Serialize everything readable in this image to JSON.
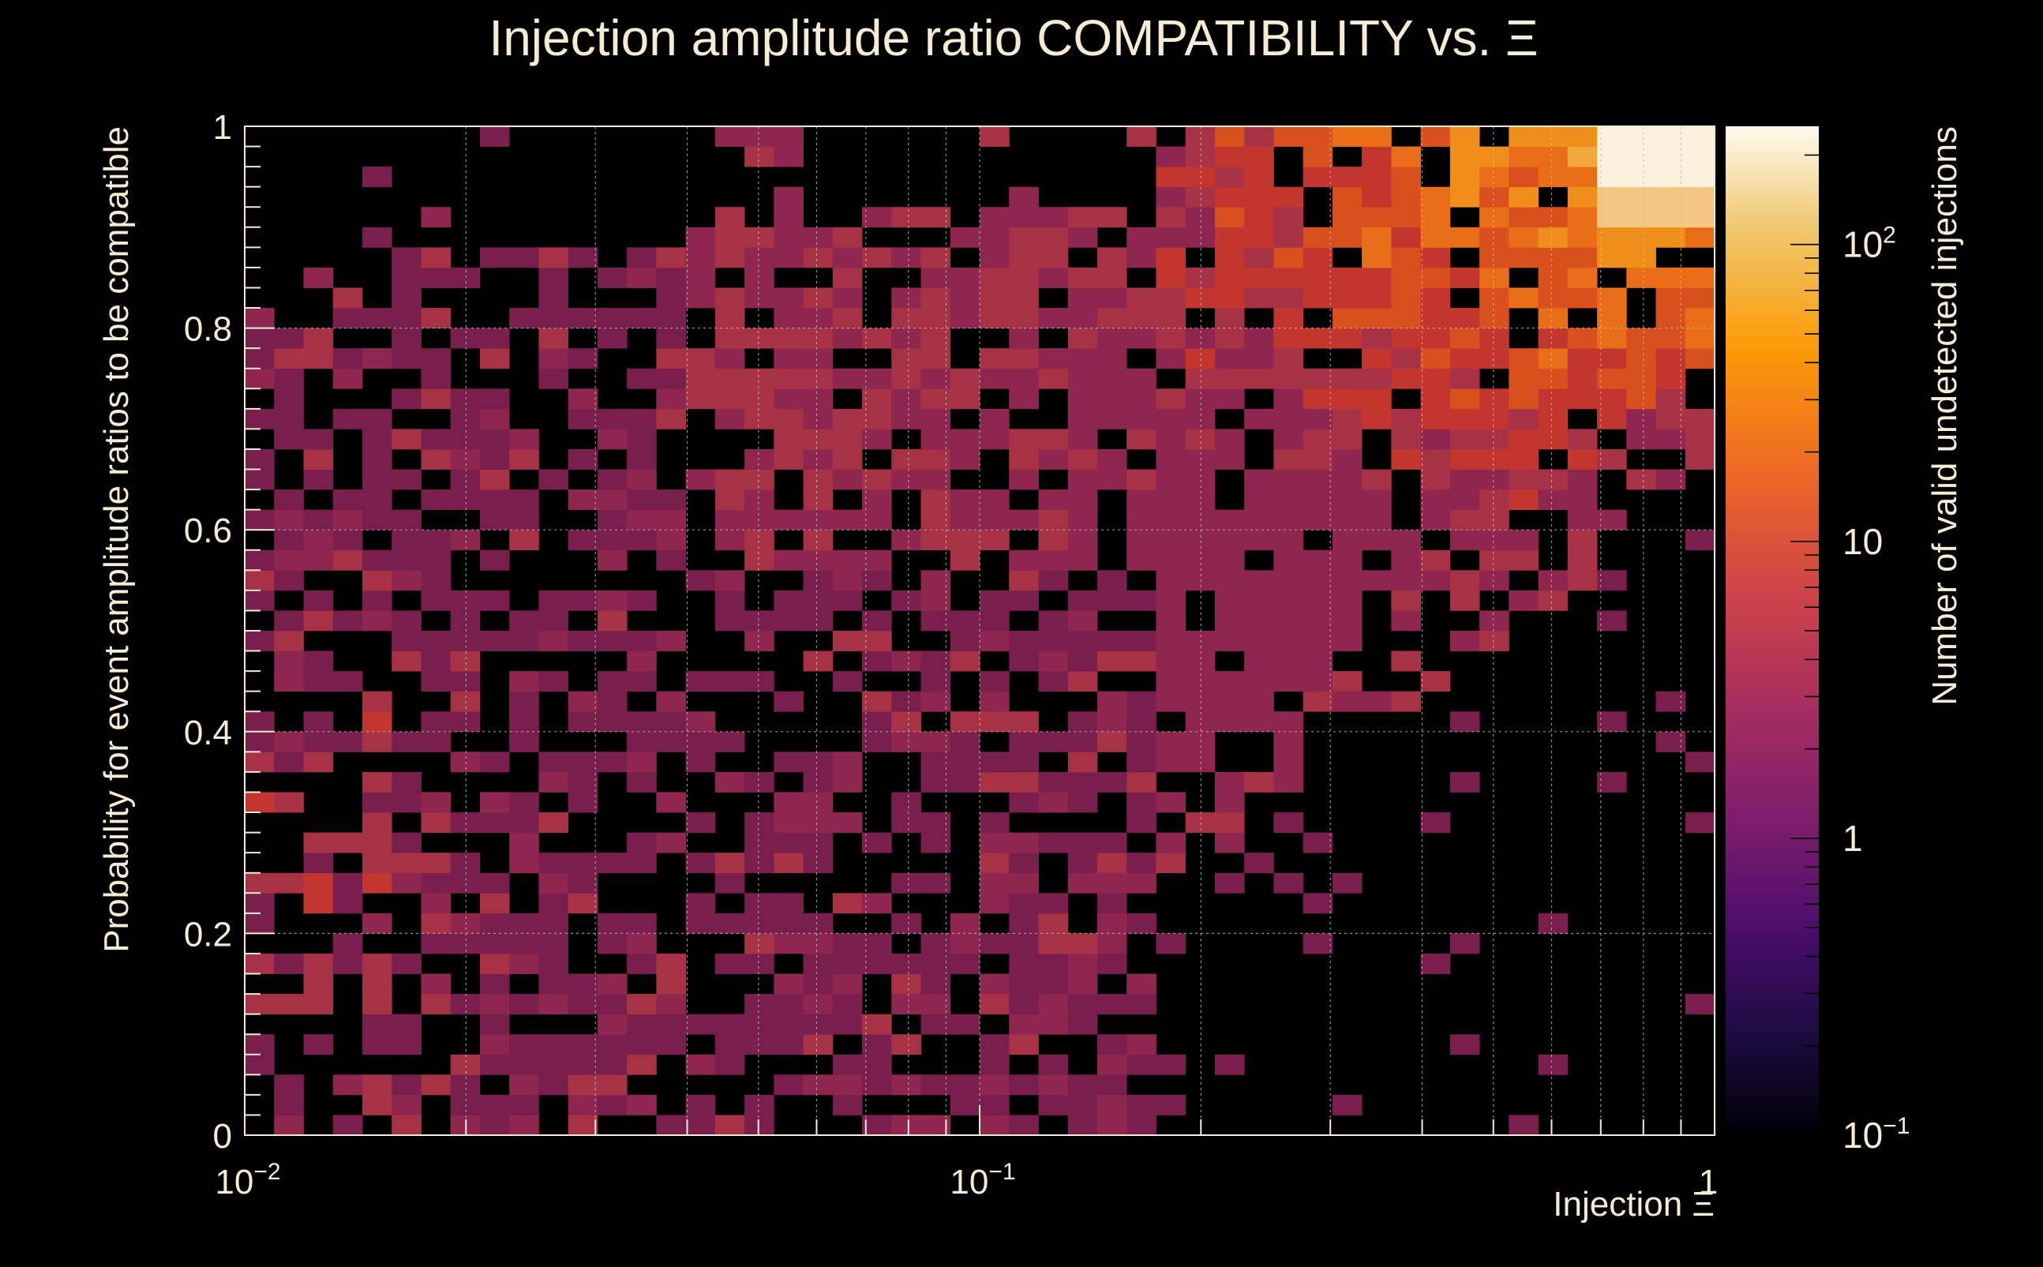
{
  "chart_data": {
    "type": "heatmap",
    "title": "Injection amplitude ratio COMPATIBILITY vs.  Ξ",
    "xlabel": "Injection Ξ",
    "ylabel": "Probability for event amplitude ratios to be compatible",
    "zlabel": "Number of valid undetected injections",
    "x_scale": "log",
    "xlim": [
      0.01,
      1
    ],
    "ylim": [
      0,
      1
    ],
    "z_scale": "log",
    "zlim": [
      0.1,
      250
    ],
    "x_ticks": [
      {
        "value": 0.01,
        "base": "10",
        "exp": "−2"
      },
      {
        "value": 0.1,
        "base": "10",
        "exp": "−1"
      },
      {
        "value": 1,
        "base": "1",
        "exp": ""
      }
    ],
    "y_ticks": [
      {
        "value": 0,
        "label": "0"
      },
      {
        "value": 0.2,
        "label": "0.2"
      },
      {
        "value": 0.4,
        "label": "0.4"
      },
      {
        "value": 0.6,
        "label": "0.6"
      },
      {
        "value": 0.8,
        "label": "0.8"
      },
      {
        "value": 1,
        "label": "1"
      }
    ],
    "z_ticks": [
      {
        "value": 0.1,
        "base": "10",
        "exp": "−1"
      },
      {
        "value": 1,
        "base": "1",
        "exp": ""
      },
      {
        "value": 10,
        "base": "10",
        "exp": ""
      },
      {
        "value": 100,
        "base": "10",
        "exp": "2"
      }
    ],
    "grid": true,
    "bins": {
      "nx": 50,
      "ny": 50
    },
    "colormap": [
      "#000000",
      "#1b0c41",
      "#4a0c6b",
      "#781c6d",
      "#a52c60",
      "#cf4446",
      "#ed6925",
      "#fb9b06",
      "#f7d13d",
      "#fcffa4",
      "#ffffff"
    ],
    "hotspot": {
      "x_center": 0.95,
      "y_center": 0.95,
      "peak_count": 250
    },
    "density_description_values": {
      "low_x_band_y_range": [
        0.15,
        0.45
      ],
      "high_count_region_x_min": 0.3,
      "high_count_region_y_min": 0.6
    }
  },
  "colors": {
    "background": "#000000",
    "text": "#f5ecd3",
    "grid": "#bdbdbd"
  }
}
